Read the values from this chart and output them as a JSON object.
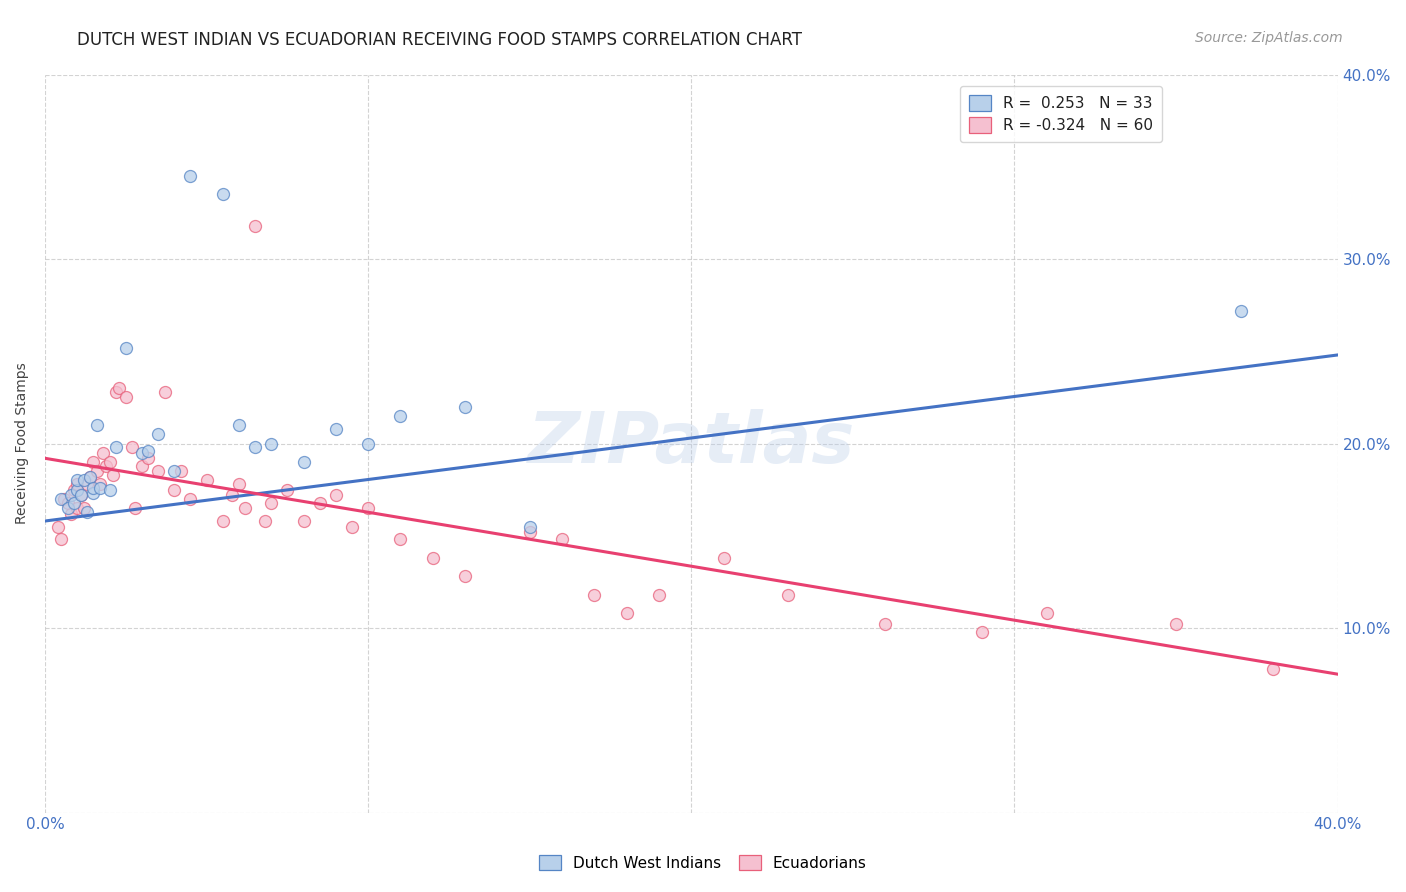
{
  "title": "DUTCH WEST INDIAN VS ECUADORIAN RECEIVING FOOD STAMPS CORRELATION CHART",
  "source": "Source: ZipAtlas.com",
  "ylabel": "Receiving Food Stamps",
  "watermark": "ZIPatlas",
  "xmin": 0.0,
  "xmax": 0.4,
  "ymin": 0.0,
  "ymax": 0.4,
  "xticks": [
    0.0,
    0.1,
    0.2,
    0.3,
    0.4
  ],
  "yticks": [
    0.0,
    0.1,
    0.2,
    0.3,
    0.4
  ],
  "xtick_labels": [
    "0.0%",
    "",
    "",
    "",
    "40.0%"
  ],
  "ytick_labels_left": [
    "",
    "",
    "",
    "",
    ""
  ],
  "ytick_labels_right": [
    "",
    "10.0%",
    "20.0%",
    "30.0%",
    "40.0%"
  ],
  "legend_label_blue": "R =  0.253   N = 33",
  "legend_label_pink": "R = -0.324   N = 60",
  "blue_scatter_x": [
    0.005,
    0.007,
    0.008,
    0.009,
    0.01,
    0.01,
    0.011,
    0.012,
    0.013,
    0.014,
    0.015,
    0.015,
    0.016,
    0.017,
    0.02,
    0.022,
    0.025,
    0.03,
    0.032,
    0.035,
    0.04,
    0.045,
    0.055,
    0.06,
    0.065,
    0.07,
    0.08,
    0.09,
    0.1,
    0.11,
    0.13,
    0.15,
    0.37
  ],
  "blue_scatter_y": [
    0.17,
    0.165,
    0.172,
    0.168,
    0.175,
    0.18,
    0.172,
    0.18,
    0.163,
    0.182,
    0.173,
    0.176,
    0.21,
    0.176,
    0.175,
    0.198,
    0.252,
    0.195,
    0.196,
    0.205,
    0.185,
    0.345,
    0.335,
    0.21,
    0.198,
    0.2,
    0.19,
    0.208,
    0.2,
    0.215,
    0.22,
    0.155,
    0.272
  ],
  "pink_scatter_x": [
    0.004,
    0.005,
    0.006,
    0.007,
    0.008,
    0.009,
    0.01,
    0.01,
    0.011,
    0.012,
    0.013,
    0.014,
    0.015,
    0.016,
    0.017,
    0.018,
    0.019,
    0.02,
    0.021,
    0.022,
    0.023,
    0.025,
    0.027,
    0.028,
    0.03,
    0.032,
    0.035,
    0.037,
    0.04,
    0.042,
    0.045,
    0.05,
    0.055,
    0.058,
    0.06,
    0.062,
    0.065,
    0.068,
    0.07,
    0.075,
    0.08,
    0.085,
    0.09,
    0.095,
    0.1,
    0.11,
    0.12,
    0.13,
    0.15,
    0.16,
    0.17,
    0.18,
    0.19,
    0.21,
    0.23,
    0.26,
    0.29,
    0.31,
    0.35,
    0.38
  ],
  "pink_scatter_y": [
    0.155,
    0.148,
    0.17,
    0.168,
    0.162,
    0.175,
    0.165,
    0.178,
    0.172,
    0.165,
    0.178,
    0.182,
    0.19,
    0.185,
    0.178,
    0.195,
    0.188,
    0.19,
    0.183,
    0.228,
    0.23,
    0.225,
    0.198,
    0.165,
    0.188,
    0.192,
    0.185,
    0.228,
    0.175,
    0.185,
    0.17,
    0.18,
    0.158,
    0.172,
    0.178,
    0.165,
    0.318,
    0.158,
    0.168,
    0.175,
    0.158,
    0.168,
    0.172,
    0.155,
    0.165,
    0.148,
    0.138,
    0.128,
    0.152,
    0.148,
    0.118,
    0.108,
    0.118,
    0.138,
    0.118,
    0.102,
    0.098,
    0.108,
    0.102,
    0.078
  ],
  "blue_line_x": [
    0.0,
    0.4
  ],
  "blue_line_y": [
    0.158,
    0.248
  ],
  "pink_line_x": [
    0.0,
    0.4
  ],
  "pink_line_y": [
    0.192,
    0.075
  ],
  "grid_color": "#c8c8c8",
  "scatter_size": 75,
  "scatter_alpha": 0.75,
  "blue_color": "#b8d0ea",
  "blue_edge_color": "#5585c5",
  "pink_color": "#f5c0d0",
  "pink_edge_color": "#e8607a",
  "line_blue_color": "#4472c4",
  "line_pink_color": "#e84070",
  "background_color": "#ffffff",
  "title_fontsize": 12,
  "axis_label_fontsize": 10,
  "tick_fontsize": 11,
  "legend_fontsize": 11,
  "watermark_fontsize": 52,
  "watermark_color": "#b8cce8",
  "watermark_alpha": 0.35,
  "source_fontsize": 10
}
